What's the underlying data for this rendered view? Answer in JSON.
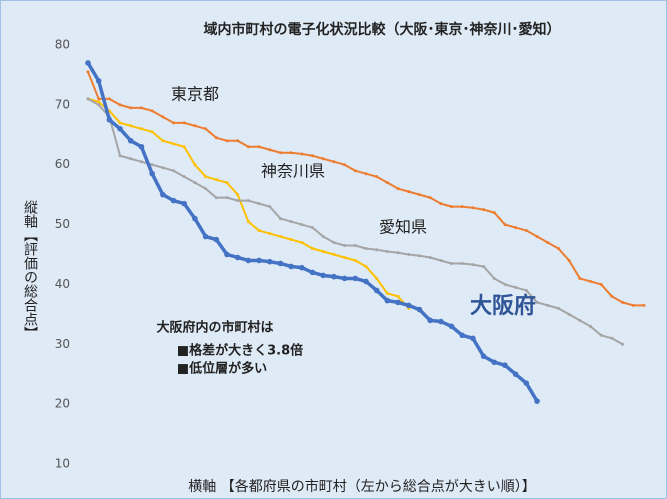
{
  "chart_data": {
    "type": "line",
    "title": "域内市町村の電子化状況比較（大阪･東京･神奈川･愛知）",
    "y_label": "縦軸【評価の総合点】",
    "x_label": "横軸 【各都府県の市町村（左から総合点が大きい順）】",
    "xlim": [
      0,
      53.5
    ],
    "ylim": [
      10,
      80
    ],
    "yticks": [
      10,
      20,
      30,
      40,
      50,
      60,
      70,
      80
    ],
    "grid": false,
    "annotations": [
      "大阪府内の市町村は",
      "■格差が大きく3.8倍",
      "■低位層が多い"
    ],
    "series": [
      {
        "name": "東京都",
        "color": "#ed7d31",
        "values": [
          75.5,
          71,
          71,
          70,
          69.5,
          69.5,
          69,
          68,
          67,
          67,
          66.5,
          66,
          64.5,
          64,
          64,
          63,
          63,
          62.5,
          62,
          62,
          61.8,
          61.5,
          61,
          60.5,
          60,
          59,
          58.5,
          58,
          57,
          56,
          55.5,
          55,
          54.5,
          53.5,
          53,
          53,
          52.8,
          52.5,
          52,
          50,
          49.5,
          49,
          48,
          47,
          46,
          44,
          41,
          40.5,
          40,
          38,
          37,
          36.5,
          36.5
        ]
      },
      {
        "name": "神奈川県",
        "color": "#ffc000",
        "values": [
          71,
          70.5,
          69,
          67,
          66.5,
          66,
          65.5,
          64,
          63.5,
          63,
          60,
          58,
          57.5,
          57,
          55,
          50.5,
          49,
          48.5,
          48,
          47.5,
          47,
          46,
          45.5,
          45,
          44.5,
          44,
          43,
          41,
          38.5,
          38,
          36
        ]
      },
      {
        "name": "愛知県",
        "color": "#a5a5a5",
        "values": [
          71,
          70,
          68,
          61.5,
          61,
          60.5,
          60,
          59.5,
          59,
          58,
          57,
          56,
          54.5,
          54.5,
          54,
          54,
          53.5,
          53,
          51,
          50.5,
          50,
          49.5,
          48,
          47,
          46.5,
          46.5,
          46,
          45.8,
          45.5,
          45.3,
          45,
          44.8,
          44.5,
          44,
          43.5,
          43.5,
          43.3,
          43,
          41,
          40,
          39.5,
          39,
          37,
          36.5,
          36,
          35,
          34,
          33,
          31.5,
          31,
          30
        ]
      },
      {
        "name": "大阪府",
        "color": "#4472c4",
        "values": [
          77,
          74,
          67.5,
          66,
          64,
          63,
          58.5,
          55,
          54,
          53.5,
          51,
          48,
          47.5,
          45,
          44.5,
          44,
          44,
          43.8,
          43.5,
          43,
          42.8,
          42,
          41.5,
          41.3,
          41,
          41,
          40.5,
          39,
          37.3,
          37,
          36.5,
          35.8,
          34,
          33.8,
          33,
          31.5,
          31,
          28,
          27,
          26.5,
          25,
          23.5,
          20.5
        ]
      }
    ]
  }
}
